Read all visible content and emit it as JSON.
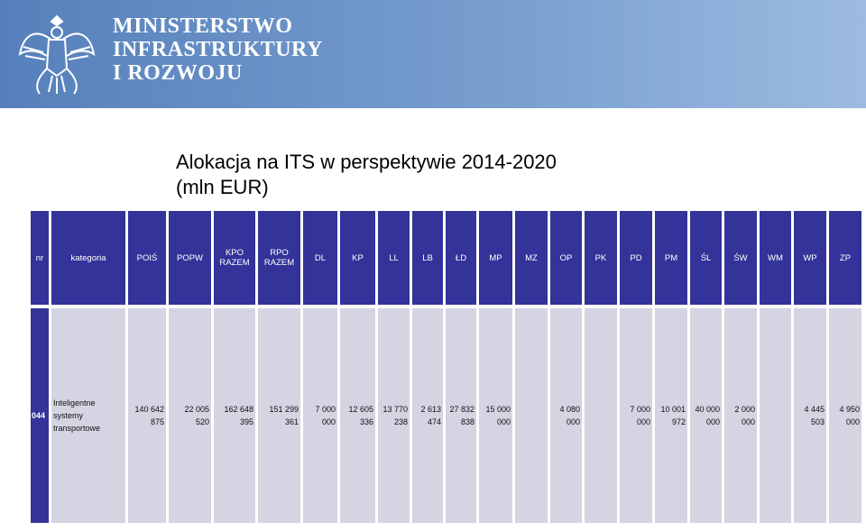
{
  "header": {
    "ministry": [
      "MINISTERSTWO",
      "INFRASTRUKTURY",
      "I ROZWOJU"
    ]
  },
  "title": [
    "Alokacja na ITS w perspektywie 2014-2020",
    "(mln EUR)"
  ],
  "table": {
    "columns": [
      "nr",
      "kategoria",
      "POIŚ",
      "POPW",
      "KPO RAZEM",
      "RPO RAZEM",
      "DL",
      "KP",
      "LL",
      "LB",
      "ŁD",
      "MP",
      "MZ",
      "OP",
      "PK",
      "PD",
      "PM",
      "ŚL",
      "ŚW",
      "WM",
      "WP",
      "ZP"
    ],
    "rows": [
      [
        "044",
        "Inteligentne systemy transportowe",
        "140 642 875",
        "22 005 520",
        "162 648 395",
        "151 299 361",
        "7 000 000",
        "12 605 336",
        "13 770 238",
        "2 613 474",
        "27 832 838",
        "15 000 000",
        null,
        "4 080 000",
        null,
        "7 000 000",
        "10 001 972",
        "40 000 000",
        "2 000 000",
        null,
        "4 445 503",
        "4 950 000"
      ]
    ]
  }
}
